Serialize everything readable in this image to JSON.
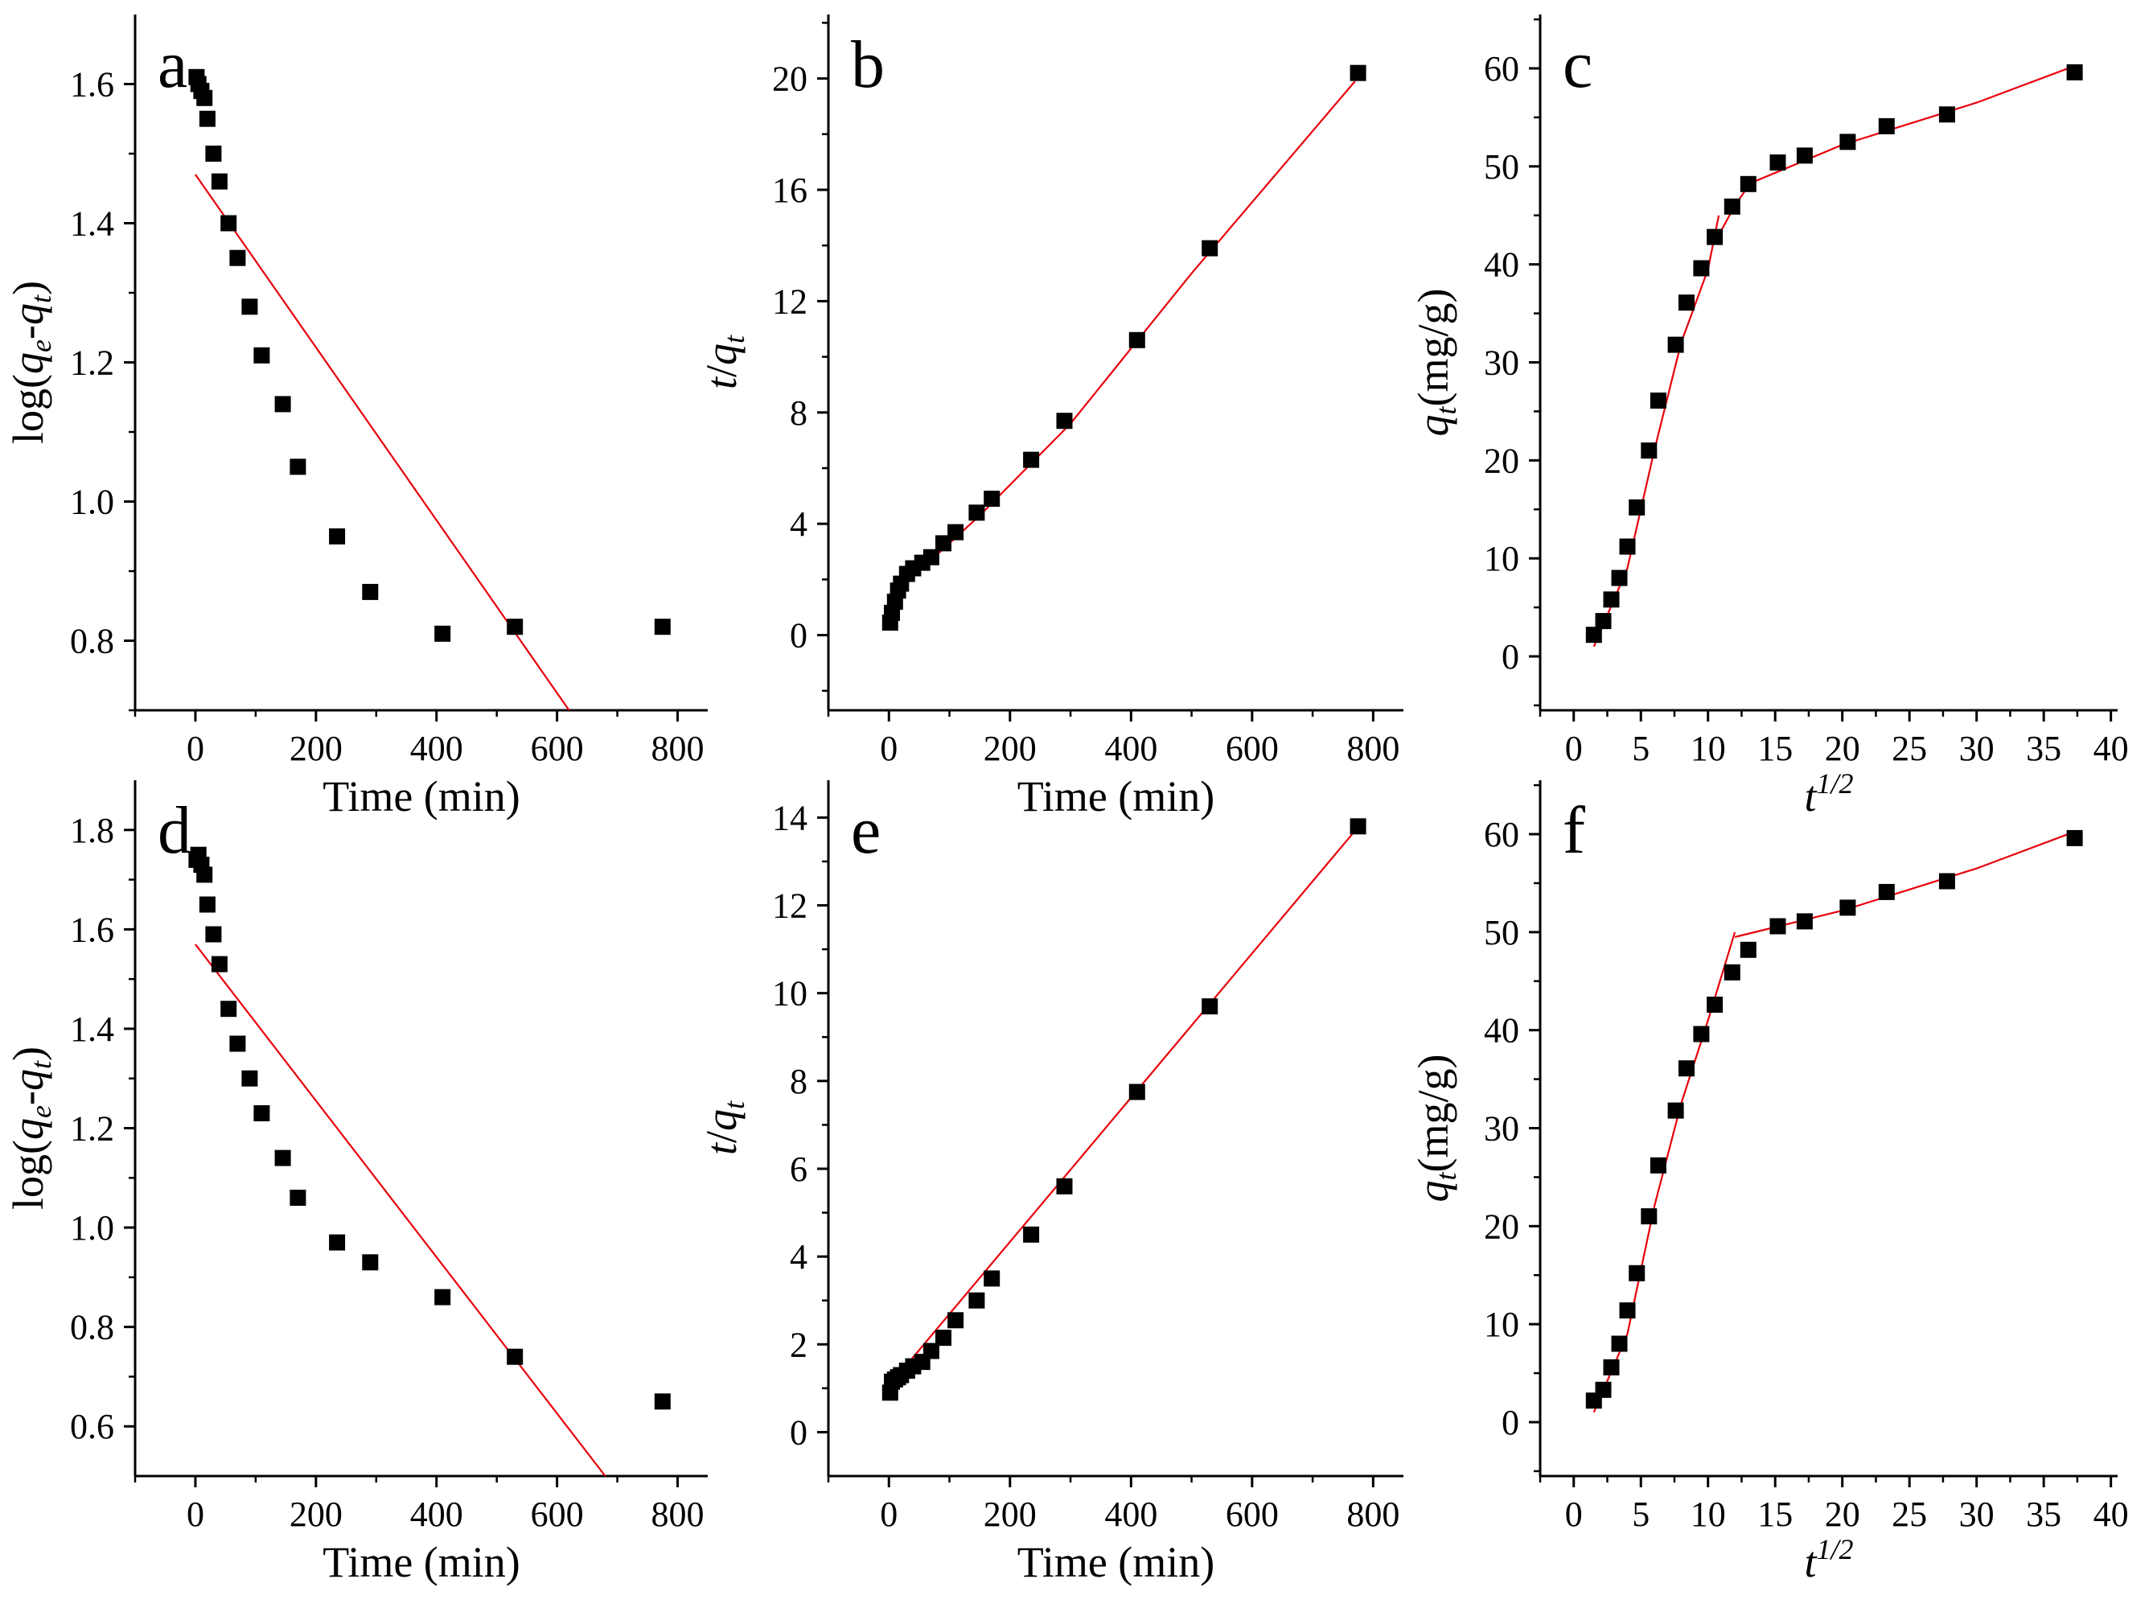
{
  "chart_data": [
    {
      "id": "a",
      "type": "scatter",
      "panel_label": "a",
      "xlabel": "Time (min)",
      "ylabel_parts": [
        "log(",
        "q",
        "e",
        "-",
        "q",
        "t",
        ")"
      ],
      "xlim": [
        -100,
        850
      ],
      "ylim": [
        0.7,
        1.7
      ],
      "xticks": [
        0,
        200,
        400,
        600,
        800
      ],
      "yticks": [
        0.8,
        1.0,
        1.2,
        1.4,
        1.6
      ],
      "y_decimals": 1,
      "points_x": [
        2,
        5,
        10,
        15,
        20,
        30,
        40,
        55,
        70,
        90,
        110,
        145,
        170,
        235,
        290,
        410,
        530,
        775
      ],
      "points_y": [
        1.61,
        1.6,
        1.59,
        1.58,
        1.55,
        1.5,
        1.46,
        1.4,
        1.35,
        1.28,
        1.21,
        1.14,
        1.05,
        0.95,
        0.87,
        0.81,
        0.82,
        0.82
      ],
      "fit_line": [
        [
          0,
          1.47
        ],
        [
          620,
          0.7
        ]
      ]
    },
    {
      "id": "b",
      "type": "scatter",
      "panel_label": "b",
      "xlabel": "Time (min)",
      "ylabel_parts": [
        "t",
        "/",
        "q",
        "t"
      ],
      "xlim": [
        -100,
        850
      ],
      "ylim": [
        -2.7,
        22.3
      ],
      "xticks": [
        0,
        200,
        400,
        600,
        800
      ],
      "yticks": [
        0,
        4,
        8,
        12,
        16,
        20
      ],
      "y_decimals": 0,
      "points_x": [
        2,
        5,
        10,
        15,
        20,
        30,
        40,
        55,
        70,
        90,
        110,
        145,
        170,
        235,
        290,
        410,
        530,
        775
      ],
      "points_y": [
        0.45,
        0.8,
        1.2,
        1.6,
        1.85,
        2.2,
        2.4,
        2.6,
        2.8,
        3.3,
        3.7,
        4.4,
        4.9,
        6.3,
        7.7,
        10.6,
        13.9,
        20.2
      ],
      "fit_line": [
        [
          0,
          1.1
        ],
        [
          30,
          2.0
        ],
        [
          80,
          2.9
        ],
        [
          150,
          4.3
        ],
        [
          300,
          7.6
        ],
        [
          500,
          13.0
        ],
        [
          770,
          19.9
        ]
      ]
    },
    {
      "id": "c",
      "type": "scatter",
      "panel_label": "c",
      "xlabel_parts": [
        "t",
        "1/2"
      ],
      "ylabel_parts": [
        "q",
        "t",
        "(mg/g)"
      ],
      "xlim": [
        -2.5,
        40.5
      ],
      "ylim": [
        -5.5,
        65.5
      ],
      "xticks": [
        0,
        5,
        10,
        15,
        20,
        25,
        30,
        35,
        40
      ],
      "yticks": [
        0,
        10,
        20,
        30,
        40,
        50,
        60
      ],
      "y_decimals": 0,
      "points_x": [
        1.5,
        2.2,
        2.8,
        3.4,
        4.0,
        4.7,
        5.6,
        6.3,
        7.6,
        8.4,
        9.5,
        10.5,
        11.8,
        13.0,
        15.2,
        17.2,
        20.4,
        23.3,
        27.8,
        37.3
      ],
      "points_y": [
        2.2,
        3.6,
        5.8,
        8.0,
        11.2,
        15.2,
        21.0,
        26.1,
        31.8,
        36.1,
        39.6,
        42.8,
        45.9,
        48.2,
        50.4,
        51.1,
        52.5,
        54.1,
        55.3,
        59.6
      ],
      "fit_line": [
        [
          1.5,
          1.0
        ],
        [
          4.0,
          9.0
        ],
        [
          6.0,
          21.0
        ],
        [
          8.0,
          32.0
        ],
        [
          10.0,
          39.5
        ],
        [
          10.8,
          45.0
        ]
      ],
      "fit_line_2": [
        [
          10.8,
          43.0
        ],
        [
          12.0,
          46.0
        ],
        [
          13.0,
          48.0
        ]
      ],
      "fit_line_3": [
        [
          13.0,
          48.2
        ],
        [
          20.0,
          52.2
        ],
        [
          30.0,
          56.5
        ],
        [
          37.0,
          60.1
        ]
      ]
    },
    {
      "id": "d",
      "type": "scatter",
      "panel_label": "d",
      "xlabel": "Time (min)",
      "ylabel_parts": [
        "log(",
        "q",
        "e",
        "-",
        "q",
        "t",
        ")"
      ],
      "xlim": [
        -100,
        850
      ],
      "ylim": [
        0.5,
        1.9
      ],
      "xticks": [
        0,
        200,
        400,
        600,
        800
      ],
      "yticks": [
        0.6,
        0.8,
        1.0,
        1.2,
        1.4,
        1.6,
        1.8
      ],
      "y_decimals": 1,
      "points_x": [
        2,
        5,
        10,
        15,
        20,
        30,
        40,
        55,
        70,
        90,
        110,
        145,
        170,
        235,
        290,
        410,
        530,
        775
      ],
      "points_y": [
        1.74,
        1.75,
        1.73,
        1.71,
        1.65,
        1.59,
        1.53,
        1.44,
        1.37,
        1.3,
        1.23,
        1.14,
        1.06,
        0.97,
        0.93,
        0.86,
        0.74,
        0.65
      ],
      "fit_line": [
        [
          0,
          1.57
        ],
        [
          680,
          0.5
        ]
      ]
    },
    {
      "id": "e",
      "type": "scatter",
      "panel_label": "e",
      "xlabel": "Time (min)",
      "ylabel_parts": [
        "t",
        "/",
        "q",
        "t"
      ],
      "xlim": [
        -100,
        850
      ],
      "ylim": [
        -1.0,
        14.85
      ],
      "xticks": [
        0,
        200,
        400,
        600,
        800
      ],
      "yticks": [
        0,
        2,
        4,
        6,
        8,
        10,
        12,
        14
      ],
      "y_decimals": 0,
      "points_x": [
        2,
        5,
        10,
        15,
        20,
        30,
        40,
        55,
        70,
        90,
        110,
        145,
        170,
        235,
        290,
        410,
        530,
        775
      ],
      "points_y": [
        0.9,
        1.15,
        1.2,
        1.25,
        1.3,
        1.4,
        1.5,
        1.6,
        1.85,
        2.15,
        2.55,
        3.0,
        3.5,
        4.5,
        5.6,
        7.75,
        9.7,
        13.8
      ],
      "fit_line": [
        [
          0,
          1.05
        ],
        [
          770,
          13.7
        ]
      ]
    },
    {
      "id": "f",
      "type": "scatter",
      "panel_label": "f",
      "xlabel_parts": [
        "t",
        "1/2"
      ],
      "ylabel_parts": [
        "q",
        "t",
        "(mg/g)"
      ],
      "xlim": [
        -2.5,
        40.5
      ],
      "ylim": [
        -5.5,
        65.5
      ],
      "xticks": [
        0,
        5,
        10,
        15,
        20,
        25,
        30,
        35,
        40
      ],
      "yticks": [
        0,
        10,
        20,
        30,
        40,
        50,
        60
      ],
      "y_decimals": 0,
      "points_x": [
        1.5,
        2.2,
        2.8,
        3.4,
        4.0,
        4.7,
        5.6,
        6.3,
        7.6,
        8.4,
        9.5,
        10.5,
        11.8,
        13.0,
        15.2,
        17.2,
        20.4,
        23.3,
        27.8,
        37.3
      ],
      "points_y": [
        2.2,
        3.3,
        5.6,
        8.0,
        11.4,
        15.2,
        21.0,
        26.2,
        31.8,
        36.1,
        39.6,
        42.6,
        45.9,
        48.2,
        50.6,
        51.1,
        52.5,
        54.1,
        55.2,
        59.6
      ],
      "fit_line": [
        [
          1.5,
          1.0
        ],
        [
          4.0,
          9.0
        ],
        [
          6.0,
          22.0
        ],
        [
          8.0,
          32.5
        ],
        [
          10.0,
          41.0
        ],
        [
          12.0,
          50.0
        ]
      ],
      "fit_line_3": [
        [
          12.0,
          49.5
        ],
        [
          20.0,
          52.2
        ],
        [
          30.0,
          56.5
        ],
        [
          37.0,
          60.1
        ]
      ]
    }
  ]
}
